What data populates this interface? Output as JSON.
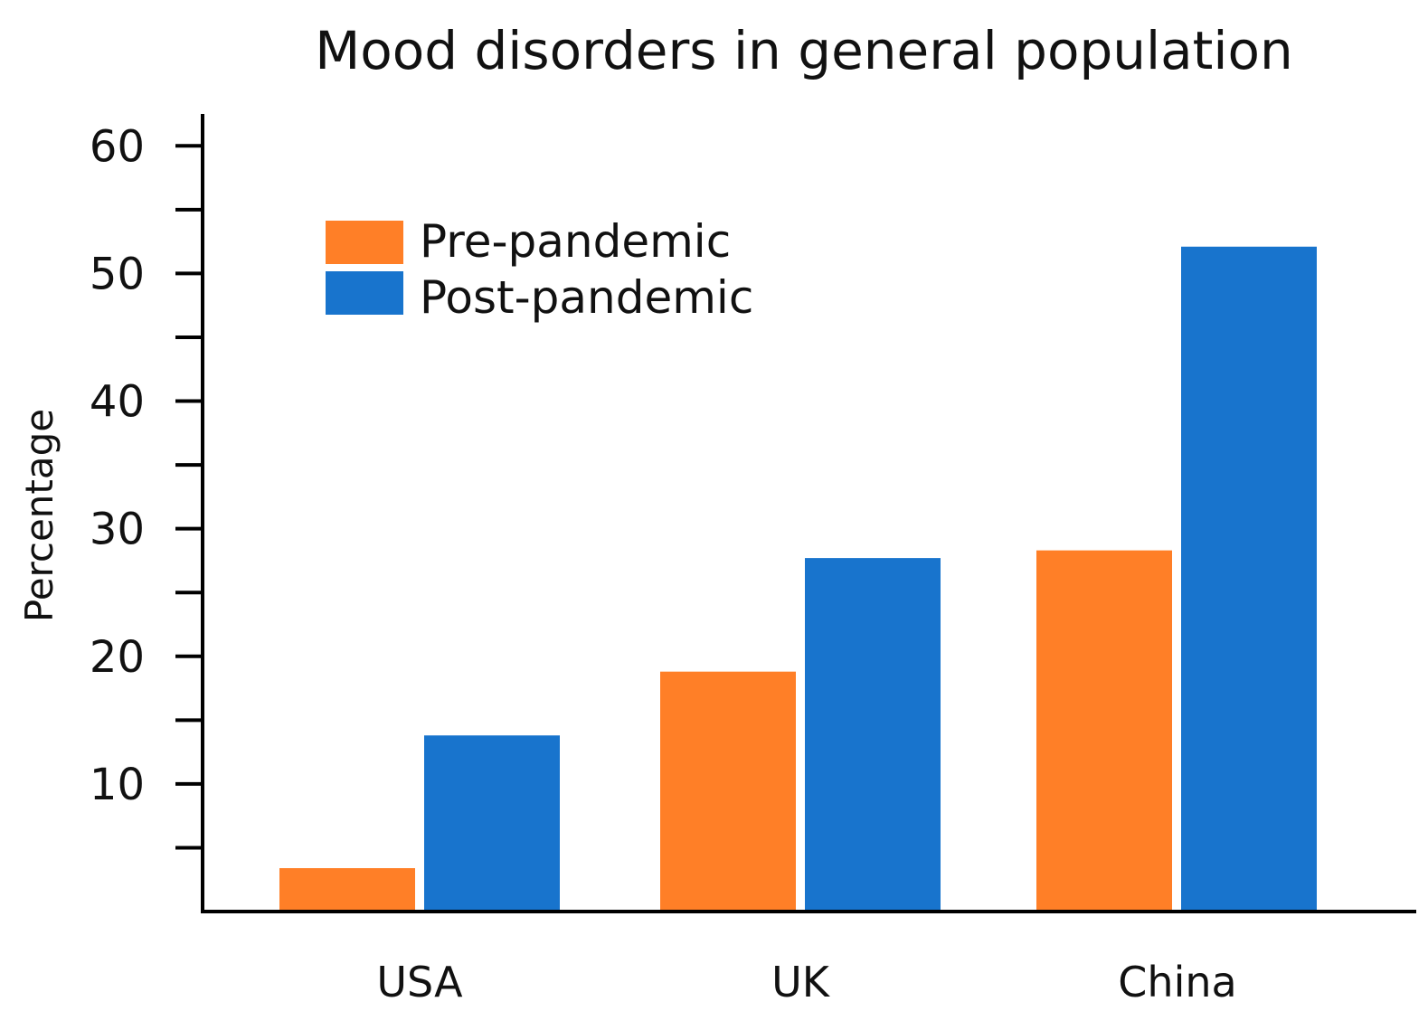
{
  "chart_data": {
    "type": "bar",
    "title": "Mood disorders in general population",
    "xlabel": "",
    "ylabel": "Percentage",
    "categories": [
      "USA",
      "UK",
      "China"
    ],
    "series": [
      {
        "name": "Pre-pandemic",
        "values": [
          3.4,
          18.8,
          28.3
        ],
        "color": "#FF7F27"
      },
      {
        "name": "Post-pandemic",
        "values": [
          13.8,
          27.7,
          52.1
        ],
        "color": "#1874CD"
      }
    ],
    "ylim": [
      0,
      62.5
    ],
    "yticks_major": [
      10,
      20,
      30,
      40,
      50,
      60
    ],
    "yticks_major_labels": [
      "10",
      "20",
      "30",
      "40",
      "50",
      "60"
    ],
    "yticks_minor": [
      5,
      15,
      25,
      35,
      45,
      55
    ],
    "grid": false,
    "legend_position": "top-left"
  }
}
